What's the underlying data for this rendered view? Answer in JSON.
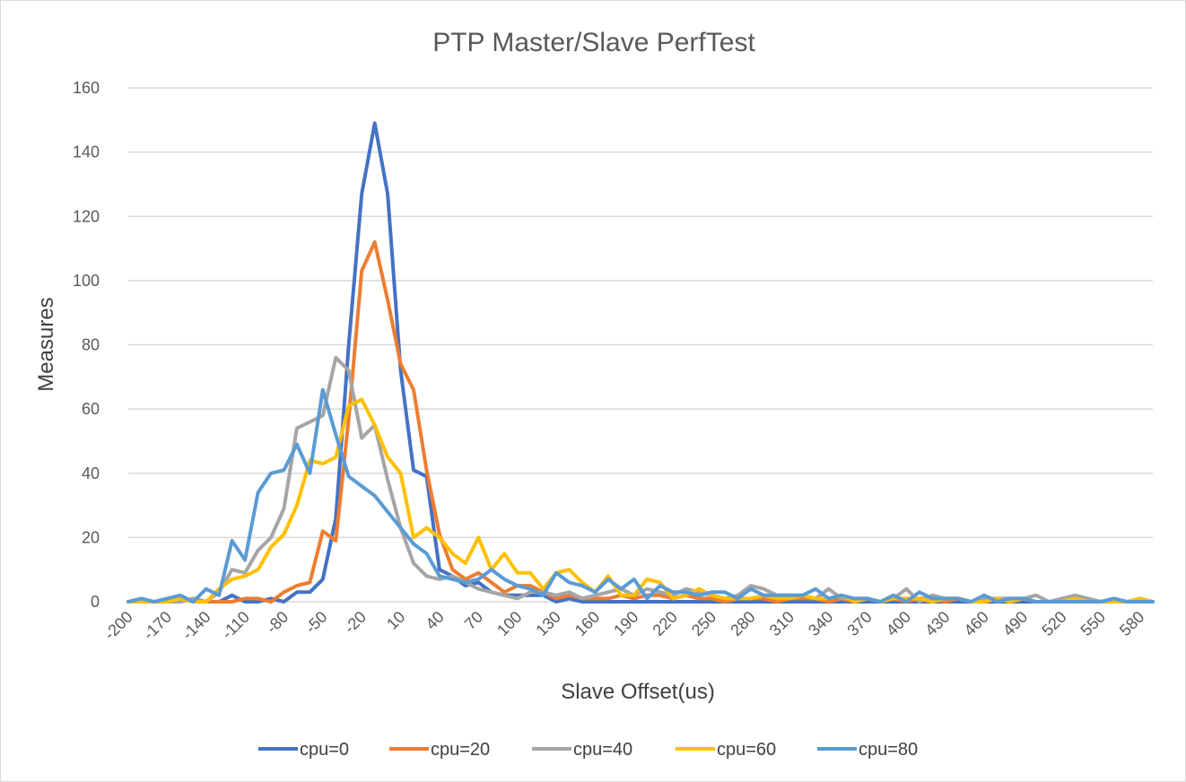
{
  "chart_data": {
    "type": "line",
    "title": "PTP Master/Slave PerfTest",
    "xlabel": "Slave Offset(us)",
    "ylabel": "Measures",
    "ylim": [
      0,
      160
    ],
    "yticks": [
      0,
      20,
      40,
      60,
      80,
      100,
      120,
      140,
      160
    ],
    "grid": "horizontal",
    "legend_position": "bottom",
    "x": [
      -200,
      -190,
      -180,
      -170,
      -160,
      -150,
      -140,
      -130,
      -120,
      -110,
      -100,
      -90,
      -80,
      -70,
      -60,
      -50,
      -40,
      -30,
      -20,
      -10,
      0,
      10,
      20,
      30,
      40,
      50,
      60,
      70,
      80,
      90,
      100,
      110,
      120,
      130,
      140,
      150,
      160,
      170,
      180,
      190,
      200,
      210,
      220,
      230,
      240,
      250,
      260,
      270,
      280,
      290,
      300,
      310,
      320,
      330,
      340,
      350,
      360,
      370,
      380,
      390,
      400,
      410,
      420,
      430,
      440,
      450,
      460,
      470,
      480,
      490,
      500,
      510,
      520,
      530,
      540,
      550,
      560,
      570,
      580,
      590
    ],
    "xtick_labels": [
      "-200",
      "-170",
      "-140",
      "-110",
      "-80",
      "-50",
      "-20",
      "10",
      "40",
      "70",
      "100",
      "130",
      "160",
      "190",
      "220",
      "250",
      "280",
      "310",
      "340",
      "370",
      "400",
      "430",
      "460",
      "490",
      "520",
      "550",
      "580"
    ],
    "series": [
      {
        "name": "cpu=0",
        "color": "#4472c4",
        "values": [
          0,
          0,
          0,
          0,
          1,
          0,
          0,
          0,
          2,
          0,
          0,
          1,
          0,
          3,
          3,
          7,
          26,
          80,
          127,
          149,
          127,
          72,
          41,
          39,
          10,
          8,
          5,
          6,
          3,
          2,
          2,
          2,
          2,
          0,
          1,
          0,
          0,
          0,
          0,
          0,
          0,
          0,
          0,
          0,
          0,
          0,
          0,
          0,
          0,
          0,
          0,
          0,
          0,
          0,
          0,
          0,
          0,
          0,
          0,
          0,
          0,
          0,
          0,
          0,
          0,
          0,
          0,
          0,
          0,
          0,
          0,
          0,
          0,
          0,
          0,
          0,
          0,
          0,
          0,
          0
        ]
      },
      {
        "name": "cpu=20",
        "color": "#ed7d31",
        "values": [
          0,
          0,
          0,
          0,
          0,
          1,
          0,
          0,
          0,
          1,
          1,
          0,
          3,
          5,
          6,
          22,
          19,
          57,
          103,
          112,
          94,
          74,
          66,
          41,
          21,
          10,
          7,
          9,
          6,
          3,
          5,
          5,
          3,
          1,
          2,
          1,
          1,
          1,
          2,
          1,
          2,
          2,
          1,
          2,
          1,
          1,
          0,
          1,
          1,
          1,
          0,
          1,
          1,
          1,
          0,
          1,
          0,
          1,
          0,
          1,
          0,
          1,
          1,
          0,
          1,
          0,
          0,
          1,
          0,
          1,
          0,
          0,
          0,
          0,
          1,
          0,
          0,
          0,
          0,
          0
        ]
      },
      {
        "name": "cpu=40",
        "color": "#a5a5a5",
        "values": [
          0,
          0,
          0,
          0,
          0,
          1,
          0,
          3,
          10,
          9,
          16,
          20,
          29,
          54,
          56,
          58,
          76,
          72,
          51,
          55,
          38,
          23,
          12,
          8,
          7,
          8,
          6,
          4,
          3,
          2,
          1,
          3,
          3,
          2,
          3,
          1,
          2,
          3,
          4,
          2,
          4,
          3,
          2,
          4,
          3,
          2,
          1,
          2,
          5,
          4,
          2,
          2,
          2,
          1,
          4,
          1,
          1,
          1,
          0,
          1,
          4,
          0,
          2,
          1,
          1,
          0,
          1,
          1,
          1,
          1,
          2,
          0,
          1,
          2,
          1,
          0,
          1,
          0,
          1,
          0
        ]
      },
      {
        "name": "cpu=60",
        "color": "#ffc000",
        "values": [
          0,
          0,
          0,
          0,
          1,
          0,
          0,
          4,
          7,
          8,
          10,
          17,
          21,
          30,
          44,
          43,
          45,
          61,
          63,
          55,
          45,
          40,
          20,
          23,
          20,
          15,
          12,
          20,
          10,
          15,
          9,
          9,
          4,
          9,
          10,
          6,
          3,
          8,
          2,
          2,
          7,
          6,
          1,
          2,
          4,
          2,
          1,
          1,
          1,
          2,
          1,
          1,
          2,
          1,
          1,
          2,
          0,
          1,
          0,
          1,
          1,
          1,
          0,
          1,
          1,
          0,
          0,
          1,
          0,
          1,
          0,
          0,
          0,
          1,
          0,
          0,
          0,
          0,
          1,
          0
        ]
      },
      {
        "name": "cpu=80",
        "color": "#5b9bd5",
        "values": [
          0,
          1,
          0,
          1,
          2,
          0,
          4,
          2,
          19,
          13,
          34,
          40,
          41,
          49,
          40,
          66,
          52,
          39,
          36,
          33,
          28,
          23,
          18,
          15,
          8,
          7,
          6,
          7,
          10,
          7,
          5,
          4,
          2,
          9,
          6,
          5,
          3,
          7,
          4,
          7,
          1,
          5,
          3,
          3,
          2,
          3,
          3,
          1,
          4,
          2,
          2,
          2,
          2,
          4,
          1,
          2,
          1,
          1,
          0,
          2,
          0,
          3,
          1,
          1,
          1,
          0,
          2,
          0,
          1,
          1,
          0,
          0,
          0,
          0,
          0,
          0,
          1,
          0,
          0,
          0
        ]
      }
    ]
  }
}
